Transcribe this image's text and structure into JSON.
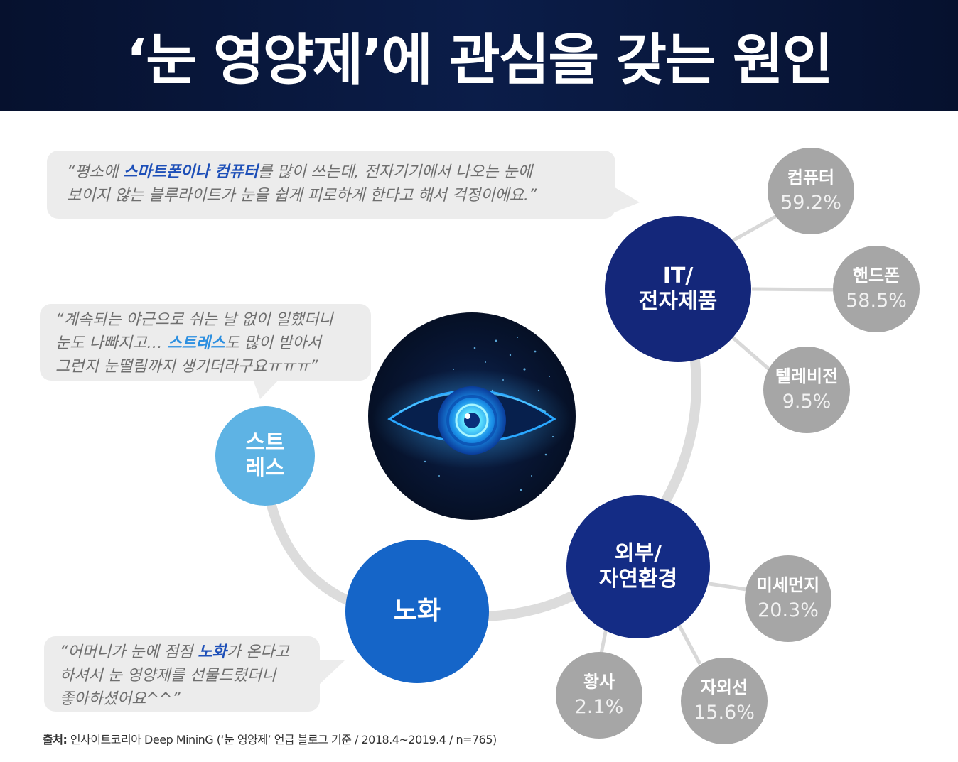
{
  "title": "‘눈 영양제’에 관심을 갖는 원인",
  "quotes": {
    "it": {
      "parts": [
        "“평소에 ",
        "스마트폰이나 컴퓨터",
        "를 많이 쓰는데, 전자기기에서 나오는 눈에",
        "보이지 않는 블루라이트가 눈을 쉽게 피로하게 한다고 해서 걱정이에요.”"
      ]
    },
    "stress": {
      "parts": [
        "“계속되는 야근으로 쉬는 날 없이 일했더니",
        "눈도 나빠지고… ",
        "스트레스",
        "도 많이 받아서",
        "그런지 눈떨림까지 생기더라구요ㅠㅠㅠ”"
      ]
    },
    "aging": {
      "parts": [
        "“어머니가 눈에 점점 ",
        "노화",
        "가 온다고",
        "하셔서 눈 영양제를 선물드렸더니",
        "좋아하셨어요^^”"
      ]
    }
  },
  "categories": {
    "it": {
      "line1": "IT/",
      "line2": "전자제품",
      "color": "#14277a"
    },
    "env": {
      "line1": "외부/",
      "line2": "자연환경",
      "color": "#142c85"
    },
    "stress": {
      "line1": "스트",
      "line2": "레스",
      "color": "#5eb3e4"
    },
    "aging": {
      "label": "노화",
      "color": "#1565c8"
    }
  },
  "items": {
    "computer": {
      "label": "컴퓨터",
      "value": "59.2%"
    },
    "phone": {
      "label": "핸드폰",
      "value": "58.5%"
    },
    "tv": {
      "label": "텔레비전",
      "value": "9.5%"
    },
    "dust": {
      "label": "미세먼지",
      "value": "20.3%"
    },
    "uv": {
      "label": "자외선",
      "value": "15.6%"
    },
    "yellowdust": {
      "label": "황사",
      "value": "2.1%"
    }
  },
  "source": {
    "label": "출처:",
    "text": " 인사이트코리아 Deep MininG (‘눈 영양제’ 언급 블로그 기준 / 2018.4~2019.4 / n=765)"
  },
  "icons": {
    "center": "eye-icon"
  }
}
